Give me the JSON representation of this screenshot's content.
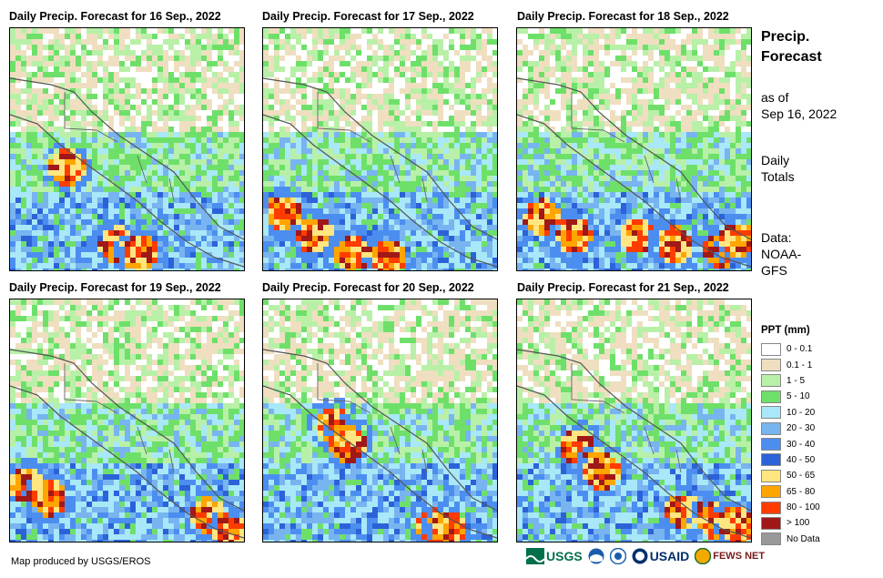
{
  "panels": [
    {
      "title": "Daily Precip. Forecast for 16 Sep., 2022"
    },
    {
      "title": "Daily Precip. Forecast for 17 Sep., 2022"
    },
    {
      "title": "Daily Precip. Forecast for 18 Sep., 2022"
    },
    {
      "title": "Daily Precip. Forecast for 19 Sep., 2022"
    },
    {
      "title": "Daily Precip. Forecast for 20 Sep., 2022"
    },
    {
      "title": "Daily Precip. Forecast for 21 Sep., 2022"
    }
  ],
  "side": {
    "title": "Precip. Forecast",
    "asof_label": "as of",
    "asof_date": "Sep 16, 2022",
    "totals_line1": "Daily",
    "totals_line2": "Totals",
    "data_line1": "Data:",
    "data_line2": "NOAA-",
    "data_line3": "GFS"
  },
  "legend": {
    "title": "PPT (mm)",
    "items": [
      {
        "label": "0 - 0.1",
        "color": "#ffffff"
      },
      {
        "label": "0.1 - 1",
        "color": "#efdfc0"
      },
      {
        "label": "1 - 5",
        "color": "#b8f0a8"
      },
      {
        "label": "5 - 10",
        "color": "#6ee06a"
      },
      {
        "label": "10 - 20",
        "color": "#a8e8f8"
      },
      {
        "label": "20 - 30",
        "color": "#78b4f0"
      },
      {
        "label": "30 - 40",
        "color": "#4c8ef0"
      },
      {
        "label": "40 - 50",
        "color": "#2c62d8"
      },
      {
        "label": "50 - 65",
        "color": "#ffe680"
      },
      {
        "label": "65 - 80",
        "color": "#ffa500"
      },
      {
        "label": "80 - 100",
        "color": "#ff3c00"
      },
      {
        "label": "> 100",
        "color": "#a01818"
      },
      {
        "label": "No Data",
        "color": "#999999"
      }
    ]
  },
  "credit": "Map produced by USGS/EROS",
  "logos": {
    "usgs": "USGS",
    "usaid": "USAID",
    "fewsnet": "FEWS NET"
  }
}
